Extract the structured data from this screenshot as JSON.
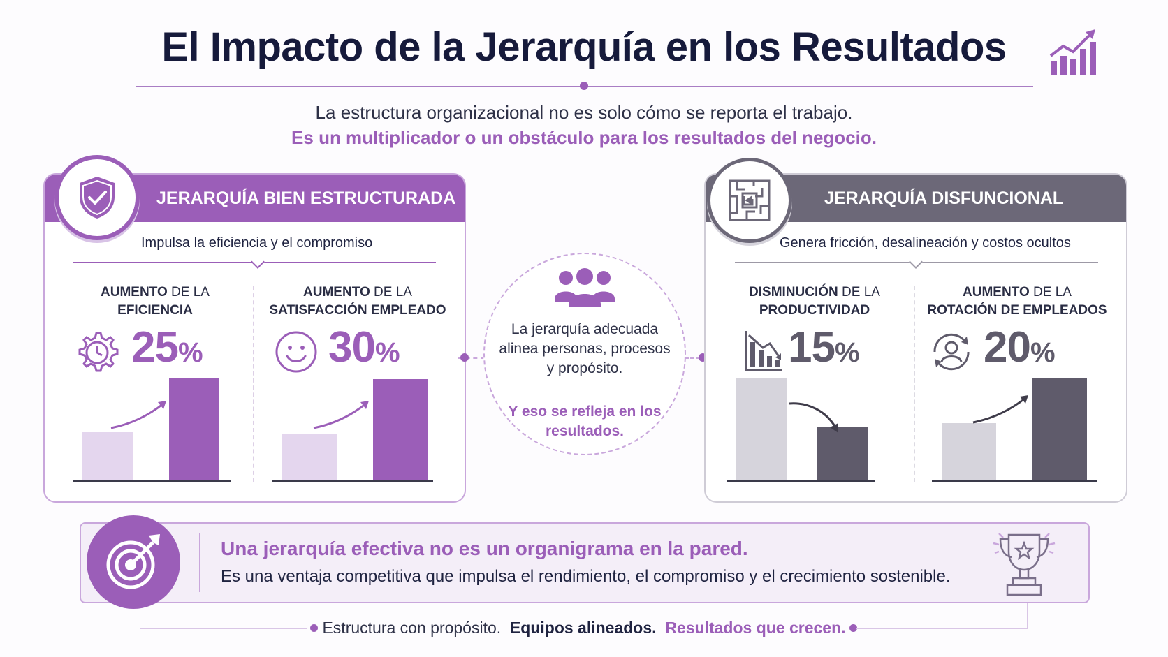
{
  "title": "El Impacto de la Jerarquía en los Resultados",
  "subtitle_line1": "La estructura organizacional no es solo cómo se reporta el trabajo.",
  "subtitle_line2": "Es un multiplicador o un obstáculo para los resultados del negocio.",
  "left_panel": {
    "header": "JERARQUÍA BIEN ESTRUCTURADA",
    "tagline": "Impulsa la eficiencia y el compromiso",
    "metrics": [
      {
        "label_bold_1": "AUMENTO",
        "label_rest_1": " DE LA",
        "label_bold_2": "EFICIENCIA",
        "value": "25",
        "unit": "%",
        "icon": "gear-clock-icon",
        "bars": [
          0.47,
          1.0
        ]
      },
      {
        "label_bold_1": "AUMENTO",
        "label_rest_1": " DE LA",
        "label_bold_2": "SATISFACCIÓN EMPLEADO",
        "value": "30",
        "unit": "%",
        "icon": "smiley-icon",
        "bars": [
          0.45,
          0.99
        ]
      }
    ]
  },
  "right_panel": {
    "header": "JERARQUÍA DISFUNCIONAL",
    "tagline": "Genera fricción, desalineación y costos ocultos",
    "metrics": [
      {
        "label_bold_1": "DISMINUCIÓN",
        "label_rest_1": " DE LA",
        "label_bold_2": "PRODUCTIVIDAD",
        "value": "15",
        "unit": "%",
        "icon": "declining-chart-icon",
        "bars": [
          1.0,
          0.52
        ]
      },
      {
        "label_bold_1": "AUMENTO",
        "label_rest_1": " DE LA",
        "label_bold_2": "ROTACIÓN DE EMPLEADOS",
        "value": "20",
        "unit": "%",
        "icon": "person-rotation-icon",
        "bars": [
          0.56,
          1.0
        ]
      }
    ]
  },
  "center": {
    "text": "La jerarquía adecuada alinea personas, procesos y propósito.",
    "emphasis": "Y eso se refleja en los resultados."
  },
  "bottom": {
    "heading": "Una jerarquía efectiva no es un organigrama en la pared.",
    "body": "Es una ventaja competitiva que impulsa el rendimiento, el compromiso y el crecimiento sostenible."
  },
  "footer": {
    "part1": "Estructura con propósito.",
    "part2": "Equipos alineados.",
    "part3": "Resultados que crecen."
  },
  "colors": {
    "accent": "#9b5eb8",
    "accent_light": "#e4d6ee",
    "dark_gray": "#5f5b6b",
    "light_gray": "#d6d4dc"
  }
}
